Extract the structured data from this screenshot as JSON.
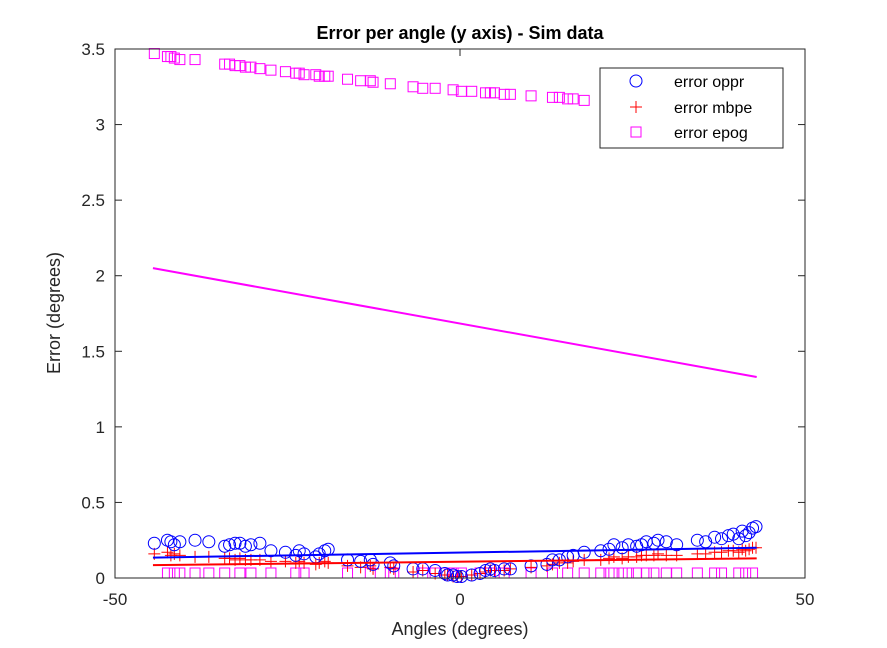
{
  "chart_data": {
    "type": "scatter",
    "title": "Error per angle (y axis)  - Sim data",
    "xlabel": "Angles (degrees)",
    "ylabel": "Error (degrees)",
    "xlim": [
      -50,
      50
    ],
    "ylim": [
      0,
      3.5
    ],
    "xticks": [
      "-50",
      "0",
      "50"
    ],
    "yticks": [
      "0",
      "0.5",
      "1",
      "1.5",
      "2",
      "2.5",
      "3",
      "3.5"
    ],
    "grid": false,
    "legend_position": "top-right",
    "series": [
      {
        "name": "error oppr",
        "marker": "circle",
        "color": "#0000ff",
        "points": [
          [
            -44.3,
            0.23
          ],
          [
            -42.4,
            0.25
          ],
          [
            -41.9,
            0.24
          ],
          [
            -41.4,
            0.22
          ],
          [
            -40.6,
            0.24
          ],
          [
            -38.4,
            0.25
          ],
          [
            -36.4,
            0.24
          ],
          [
            -34.1,
            0.21
          ],
          [
            -33.4,
            0.22
          ],
          [
            -32.6,
            0.23
          ],
          [
            -31.9,
            0.23
          ],
          [
            -31.1,
            0.21
          ],
          [
            -30.3,
            0.22
          ],
          [
            -29.0,
            0.23
          ],
          [
            -27.4,
            0.18
          ],
          [
            -25.3,
            0.17
          ],
          [
            -23.8,
            0.15
          ],
          [
            -23.3,
            0.18
          ],
          [
            -22.6,
            0.16
          ],
          [
            -20.9,
            0.14
          ],
          [
            -20.4,
            0.16
          ],
          [
            -19.6,
            0.18
          ],
          [
            -19.1,
            0.19
          ],
          [
            -16.3,
            0.12
          ],
          [
            -14.4,
            0.11
          ],
          [
            -13.0,
            0.12
          ],
          [
            -12.6,
            0.09
          ],
          [
            -10.1,
            0.1
          ],
          [
            -9.6,
            0.08
          ],
          [
            -6.8,
            0.06
          ],
          [
            -5.4,
            0.06
          ],
          [
            -3.6,
            0.05
          ],
          [
            -2.2,
            0.03
          ],
          [
            -1.8,
            0.02
          ],
          [
            -1.0,
            0.02
          ],
          [
            -0.4,
            0.01
          ],
          [
            0.2,
            0.01
          ],
          [
            1.7,
            0.02
          ],
          [
            2.9,
            0.03
          ],
          [
            3.7,
            0.05
          ],
          [
            4.4,
            0.06
          ],
          [
            5.0,
            0.05
          ],
          [
            6.4,
            0.06
          ],
          [
            7.3,
            0.06
          ],
          [
            10.3,
            0.08
          ],
          [
            12.6,
            0.09
          ],
          [
            13.4,
            0.12
          ],
          [
            14.4,
            0.12
          ],
          [
            15.6,
            0.14
          ],
          [
            16.4,
            0.15
          ],
          [
            18.0,
            0.17
          ],
          [
            20.4,
            0.18
          ],
          [
            21.6,
            0.19
          ],
          [
            22.3,
            0.22
          ],
          [
            23.5,
            0.2
          ],
          [
            24.4,
            0.22
          ],
          [
            25.6,
            0.21
          ],
          [
            26.3,
            0.22
          ],
          [
            27.0,
            0.24
          ],
          [
            28.1,
            0.23
          ],
          [
            28.7,
            0.25
          ],
          [
            29.9,
            0.24
          ],
          [
            31.4,
            0.22
          ],
          [
            34.4,
            0.25
          ],
          [
            35.6,
            0.24
          ],
          [
            36.9,
            0.27
          ],
          [
            37.9,
            0.26
          ],
          [
            38.9,
            0.28
          ],
          [
            39.6,
            0.29
          ],
          [
            40.4,
            0.26
          ],
          [
            40.9,
            0.31
          ],
          [
            41.4,
            0.28
          ],
          [
            41.9,
            0.3
          ],
          [
            42.4,
            0.33
          ],
          [
            42.9,
            0.34
          ]
        ],
        "fit": [
          [
            -44.5,
            0.135
          ],
          [
            43,
            0.2
          ]
        ]
      },
      {
        "name": "error mbpe",
        "marker": "plus",
        "color": "#ff0000",
        "points": [
          [
            -44.3,
            0.16
          ],
          [
            -42.4,
            0.17
          ],
          [
            -41.9,
            0.15
          ],
          [
            -41.4,
            0.16
          ],
          [
            -40.6,
            0.15
          ],
          [
            -38.4,
            0.14
          ],
          [
            -36.4,
            0.14
          ],
          [
            -34.1,
            0.13
          ],
          [
            -33.4,
            0.13
          ],
          [
            -32.6,
            0.12
          ],
          [
            -31.9,
            0.13
          ],
          [
            -31.1,
            0.12
          ],
          [
            -30.3,
            0.12
          ],
          [
            -29.0,
            0.12
          ],
          [
            -27.4,
            0.11
          ],
          [
            -25.3,
            0.11
          ],
          [
            -23.8,
            0.1
          ],
          [
            -23.3,
            0.11
          ],
          [
            -22.6,
            0.1
          ],
          [
            -20.9,
            0.09
          ],
          [
            -20.4,
            0.1
          ],
          [
            -19.6,
            0.11
          ],
          [
            -19.1,
            0.1
          ],
          [
            -16.3,
            0.08
          ],
          [
            -14.4,
            0.07
          ],
          [
            -13.0,
            0.08
          ],
          [
            -12.6,
            0.06
          ],
          [
            -10.1,
            0.07
          ],
          [
            -9.6,
            0.06
          ],
          [
            -6.8,
            0.04
          ],
          [
            -5.4,
            0.05
          ],
          [
            -3.6,
            0.03
          ],
          [
            -2.2,
            0.02
          ],
          [
            -1.8,
            0.02
          ],
          [
            -1.0,
            0.01
          ],
          [
            -0.4,
            0.01
          ],
          [
            0.2,
            0.01
          ],
          [
            1.7,
            0.02
          ],
          [
            2.9,
            0.03
          ],
          [
            3.7,
            0.04
          ],
          [
            4.4,
            0.05
          ],
          [
            5.0,
            0.05
          ],
          [
            6.4,
            0.05
          ],
          [
            7.3,
            0.06
          ],
          [
            10.3,
            0.07
          ],
          [
            12.6,
            0.08
          ],
          [
            13.4,
            0.09
          ],
          [
            14.4,
            0.1
          ],
          [
            15.6,
            0.1
          ],
          [
            16.4,
            0.11
          ],
          [
            18.0,
            0.12
          ],
          [
            20.4,
            0.12
          ],
          [
            21.6,
            0.13
          ],
          [
            22.3,
            0.14
          ],
          [
            23.5,
            0.13
          ],
          [
            24.4,
            0.14
          ],
          [
            25.6,
            0.14
          ],
          [
            26.3,
            0.15
          ],
          [
            27.0,
            0.15
          ],
          [
            28.1,
            0.15
          ],
          [
            28.7,
            0.16
          ],
          [
            29.9,
            0.15
          ],
          [
            31.4,
            0.15
          ],
          [
            34.4,
            0.16
          ],
          [
            35.6,
            0.16
          ],
          [
            36.9,
            0.17
          ],
          [
            37.9,
            0.17
          ],
          [
            38.9,
            0.18
          ],
          [
            39.6,
            0.18
          ],
          [
            40.4,
            0.17
          ],
          [
            40.9,
            0.19
          ],
          [
            41.4,
            0.18
          ],
          [
            41.9,
            0.19
          ],
          [
            42.4,
            0.2
          ],
          [
            42.9,
            0.2
          ]
        ],
        "fit": [
          [
            -44.5,
            0.085
          ],
          [
            43,
            0.13
          ]
        ]
      },
      {
        "name": "error epog",
        "marker": "square",
        "color": "#ff00ff",
        "points": [
          [
            -44.3,
            3.47
          ],
          [
            -42.4,
            3.45
          ],
          [
            -41.9,
            3.45
          ],
          [
            -41.4,
            3.44
          ],
          [
            -40.6,
            3.43
          ],
          [
            -38.4,
            3.43
          ],
          [
            -34.1,
            3.4
          ],
          [
            -33.4,
            3.4
          ],
          [
            -32.6,
            3.39
          ],
          [
            -31.9,
            3.39
          ],
          [
            -31.1,
            3.38
          ],
          [
            -30.3,
            3.38
          ],
          [
            -29.0,
            3.37
          ],
          [
            -27.4,
            3.36
          ],
          [
            -25.3,
            3.35
          ],
          [
            -23.8,
            3.34
          ],
          [
            -23.3,
            3.34
          ],
          [
            -22.6,
            3.33
          ],
          [
            -20.9,
            3.33
          ],
          [
            -20.4,
            3.32
          ],
          [
            -19.6,
            3.32
          ],
          [
            -19.1,
            3.32
          ],
          [
            -16.3,
            3.3
          ],
          [
            -14.4,
            3.29
          ],
          [
            -13.0,
            3.29
          ],
          [
            -12.6,
            3.28
          ],
          [
            -10.1,
            3.27
          ],
          [
            -6.8,
            3.25
          ],
          [
            -5.4,
            3.24
          ],
          [
            -3.6,
            3.24
          ],
          [
            -1.0,
            3.23
          ],
          [
            0.2,
            3.22
          ],
          [
            1.7,
            3.22
          ],
          [
            3.7,
            3.21
          ],
          [
            4.4,
            3.21
          ],
          [
            5.0,
            3.21
          ],
          [
            6.4,
            3.2
          ],
          [
            7.3,
            3.2
          ],
          [
            10.3,
            3.19
          ],
          [
            13.4,
            3.18
          ],
          [
            14.4,
            3.18
          ],
          [
            15.6,
            3.17
          ],
          [
            16.4,
            3.17
          ],
          [
            18.0,
            3.16
          ]
        ],
        "zeros_x": [
          -42.4,
          -41.4,
          -40.6,
          -38.4,
          -36.4,
          -34.1,
          -31.9,
          -30.3,
          -27.4,
          -23.8,
          -22.6,
          -16.3,
          -13.0,
          -10.1,
          -9.6,
          -5.4,
          -3.6,
          -2.2,
          -1.0,
          0.2,
          2.9,
          4.4,
          6.4,
          10.3,
          13.4,
          15.6,
          18.0,
          20.4,
          21.6,
          22.3,
          23.5,
          24.4,
          25.6,
          27.0,
          28.1,
          29.9,
          31.4,
          34.4,
          36.9,
          37.9,
          40.4,
          41.4,
          42.4
        ],
        "fit": [
          [
            -44.5,
            2.05
          ],
          [
            43,
            1.33
          ]
        ]
      }
    ]
  }
}
